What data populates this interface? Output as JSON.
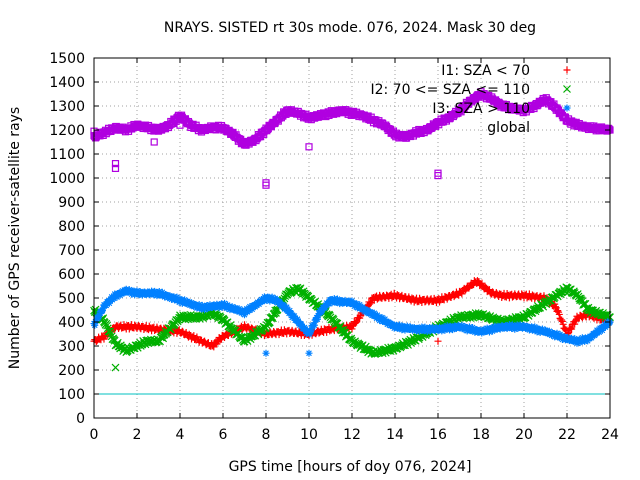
{
  "chart_data": {
    "type": "scatter",
    "title": "NRAYS. SISTED rt 30s mode. 076, 2024. Mask 30 deg",
    "xlabel": "GPS time [hours of doy 076, 2024]",
    "ylabel": "Number of GPS receiver-satellite rays",
    "xlim": [
      0,
      24
    ],
    "ylim": [
      0,
      1500
    ],
    "x_ticks": [
      "0",
      "2",
      "4",
      "6",
      "8",
      "10",
      "12",
      "14",
      "16",
      "18",
      "20",
      "22",
      "24"
    ],
    "y_ticks": [
      "0",
      "100",
      "200",
      "300",
      "400",
      "500",
      "600",
      "700",
      "800",
      "900",
      "1000",
      "1100",
      "1200",
      "1300",
      "1400",
      "1500"
    ],
    "grid": true,
    "legend_position": "top-right",
    "threshold_line": {
      "y": 100,
      "color": "#00c0c0"
    },
    "series": [
      {
        "name": "I1: SZA < 70",
        "color": "#ff0000",
        "marker": "+",
        "x": [
          0,
          0.5,
          1,
          2,
          3,
          4,
          5,
          5.5,
          6,
          7,
          8,
          9,
          10,
          11,
          12,
          13,
          14,
          15,
          16,
          17,
          17.8,
          18.5,
          19,
          20,
          21,
          21.5,
          22,
          22.5,
          23,
          24
        ],
        "values": [
          320,
          340,
          380,
          380,
          370,
          360,
          320,
          300,
          340,
          380,
          350,
          360,
          350,
          370,
          380,
          500,
          510,
          490,
          490,
          520,
          570,
          520,
          510,
          510,
          500,
          460,
          350,
          420,
          430,
          400
        ]
      },
      {
        "name": "I2: 70 <= SZA <= 110",
        "color": "#00b000",
        "marker": "x",
        "x": [
          0,
          0.5,
          1,
          1.5,
          2,
          2.5,
          3,
          4,
          5,
          5.5,
          6,
          7,
          8,
          9,
          9.5,
          10,
          11,
          12,
          13,
          14,
          15,
          16,
          17,
          18,
          19,
          20,
          21,
          22,
          22.5,
          23,
          24
        ],
        "values": [
          450,
          400,
          310,
          280,
          300,
          320,
          320,
          420,
          420,
          440,
          410,
          320,
          380,
          520,
          540,
          500,
          420,
          320,
          270,
          290,
          330,
          380,
          420,
          430,
          400,
          420,
          480,
          540,
          510,
          450,
          420
        ]
      },
      {
        "name": "I3: SZA > 110",
        "color": "#0080ff",
        "marker": "*",
        "x": [
          0,
          0.5,
          1,
          1.5,
          2,
          3,
          4,
          5,
          6,
          7,
          7.5,
          8,
          8.5,
          9,
          10,
          10.5,
          11,
          12,
          13,
          14,
          15,
          16,
          17,
          18,
          19,
          20,
          21,
          22,
          22.5,
          23,
          24
        ],
        "values": [
          390,
          470,
          510,
          530,
          520,
          520,
          490,
          460,
          470,
          440,
          470,
          500,
          490,
          450,
          350,
          440,
          490,
          480,
          430,
          380,
          370,
          370,
          380,
          360,
          380,
          380,
          360,
          330,
          320,
          330,
          400
        ]
      },
      {
        "name": "global",
        "color": "#b000e0",
        "marker": "square",
        "x": [
          0,
          0.5,
          1,
          1.5,
          2,
          2.5,
          3,
          3.5,
          4,
          4.5,
          5,
          5.5,
          6,
          6.5,
          7,
          7.5,
          8,
          8.5,
          9,
          9.5,
          10,
          10.5,
          11,
          11.5,
          12,
          12.5,
          13,
          13.5,
          14,
          14.5,
          15,
          15.5,
          16,
          16.5,
          17,
          17.5,
          18,
          18.5,
          19,
          19.5,
          20,
          20.5,
          21,
          21.5,
          22,
          22.5,
          23,
          24
        ],
        "values": [
          1170,
          1190,
          1210,
          1200,
          1220,
          1210,
          1200,
          1220,
          1260,
          1220,
          1200,
          1210,
          1210,
          1180,
          1140,
          1160,
          1200,
          1240,
          1280,
          1270,
          1250,
          1260,
          1270,
          1280,
          1270,
          1260,
          1240,
          1220,
          1180,
          1170,
          1190,
          1200,
          1230,
          1250,
          1280,
          1320,
          1350,
          1330,
          1300,
          1290,
          1280,
          1300,
          1330,
          1290,
          1240,
          1220,
          1210,
          1200
        ]
      }
    ],
    "outliers": [
      {
        "series": "global",
        "x": 0,
        "y": 1195
      },
      {
        "series": "global",
        "x": 1,
        "y": 1060
      },
      {
        "series": "global",
        "x": 1,
        "y": 1040
      },
      {
        "series": "global",
        "x": 2.8,
        "y": 1150
      },
      {
        "series": "global",
        "x": 4,
        "y": 1220
      },
      {
        "series": "global",
        "x": 8,
        "y": 980
      },
      {
        "series": "global",
        "x": 8,
        "y": 970
      },
      {
        "series": "global",
        "x": 10,
        "y": 1130
      },
      {
        "series": "global",
        "x": 16,
        "y": 1020
      },
      {
        "series": "global",
        "x": 16,
        "y": 1010
      },
      {
        "series": "I2: 70 <= SZA <= 110",
        "x": 1,
        "y": 210
      },
      {
        "series": "I3: SZA > 110",
        "x": 8,
        "y": 270
      },
      {
        "series": "I3: SZA > 110",
        "x": 10,
        "y": 270
      },
      {
        "series": "I1: SZA < 70",
        "x": 16,
        "y": 320
      }
    ]
  }
}
